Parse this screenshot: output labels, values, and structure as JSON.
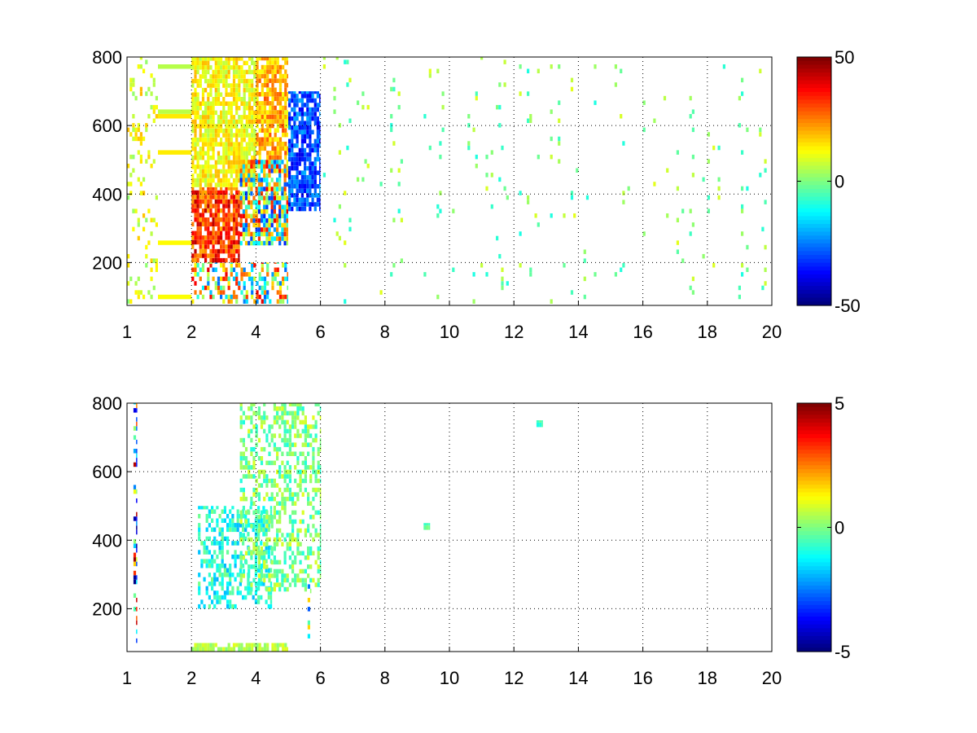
{
  "chart_data": [
    {
      "type": "heatmap",
      "x_ticks": [
        1,
        2,
        4,
        6,
        8,
        10,
        12,
        14,
        16,
        18,
        20
      ],
      "y_ticks": [
        200,
        400,
        600,
        800
      ],
      "xlim": [
        1,
        20
      ],
      "ylim": [
        75,
        800
      ],
      "x_scale": "linear-with-offset-first-tick",
      "grid": "dotted",
      "colorbar": {
        "ticks": [
          50,
          0,
          -50
        ],
        "range": [
          -50,
          50
        ],
        "colormap": "jet"
      },
      "cells_approx": [
        {
          "x_range": [
            1.0,
            2.0
          ],
          "y_range": [
            80,
            800
          ],
          "value_range": [
            0,
            20
          ],
          "density": "sparse-vertical-streaks"
        },
        {
          "x_range": [
            2.0,
            3.5
          ],
          "y_range": [
            200,
            420
          ],
          "value_range": [
            20,
            45
          ],
          "density": "dense",
          "note": "red/orange band"
        },
        {
          "x_range": [
            2.0,
            4.0
          ],
          "y_range": [
            420,
            800
          ],
          "value_range": [
            5,
            20
          ],
          "density": "dense",
          "note": "yellow"
        },
        {
          "x_range": [
            3.5,
            5.0
          ],
          "y_range": [
            250,
            500
          ],
          "value_range": [
            -35,
            40
          ],
          "density": "dense",
          "note": "mixed red/blue"
        },
        {
          "x_range": [
            4.0,
            5.0
          ],
          "y_range": [
            500,
            800
          ],
          "value_range": [
            10,
            30
          ],
          "density": "dense",
          "note": "orange"
        },
        {
          "x_range": [
            5.0,
            6.0
          ],
          "y_range": [
            350,
            700
          ],
          "value_range": [
            -40,
            -20
          ],
          "density": "dense",
          "note": "blue"
        },
        {
          "x_range": [
            2.0,
            5.0
          ],
          "y_range": [
            80,
            200
          ],
          "value_range": [
            -30,
            40
          ],
          "density": "medium"
        },
        {
          "x_range": [
            6.0,
            20.0
          ],
          "y_range": [
            80,
            800
          ],
          "value_range": [
            -10,
            10
          ],
          "density": "sparse-scattered",
          "note": "green/cyan/yellow patches"
        }
      ]
    },
    {
      "type": "heatmap",
      "x_ticks": [
        1,
        2,
        4,
        6,
        8,
        10,
        12,
        14,
        16,
        18,
        20
      ],
      "y_ticks": [
        200,
        400,
        600,
        800
      ],
      "xlim": [
        1,
        20
      ],
      "ylim": [
        75,
        800
      ],
      "grid": "dotted",
      "colorbar": {
        "ticks": [
          5,
          0,
          -5
        ],
        "range": [
          -5,
          5
        ],
        "colormap": "jet"
      },
      "cells_approx": [
        {
          "x_range": [
            2.2,
            4.5
          ],
          "y_range": [
            200,
            500
          ],
          "value_range": [
            -2,
            0
          ],
          "density": "medium",
          "note": "cyan"
        },
        {
          "x_range": [
            3.5,
            6.0
          ],
          "y_range": [
            250,
            800
          ],
          "value_range": [
            -1,
            1
          ],
          "density": "medium",
          "note": "green"
        },
        {
          "x_range": [
            2.0,
            5.0
          ],
          "y_range": [
            75,
            100
          ],
          "value_range": [
            0,
            1
          ],
          "density": "dense",
          "note": "green strip"
        },
        {
          "x_range": [
            1.2,
            1.3
          ],
          "y_range": [
            100,
            800
          ],
          "value_range": [
            -5,
            5
          ],
          "density": "sparse-column"
        },
        {
          "x_range": [
            5.6,
            5.7
          ],
          "y_range": [
            100,
            280
          ],
          "value_range": [
            -5,
            5
          ],
          "density": "sparse-column"
        },
        {
          "x_range": [
            9.2,
            9.4
          ],
          "y_range": [
            430,
            450
          ],
          "value_range": [
            -1,
            0
          ],
          "density": "isolated"
        },
        {
          "x_range": [
            12.7,
            12.9
          ],
          "y_range": [
            730,
            750
          ],
          "value_range": [
            -1,
            0
          ],
          "density": "isolated"
        }
      ]
    }
  ]
}
